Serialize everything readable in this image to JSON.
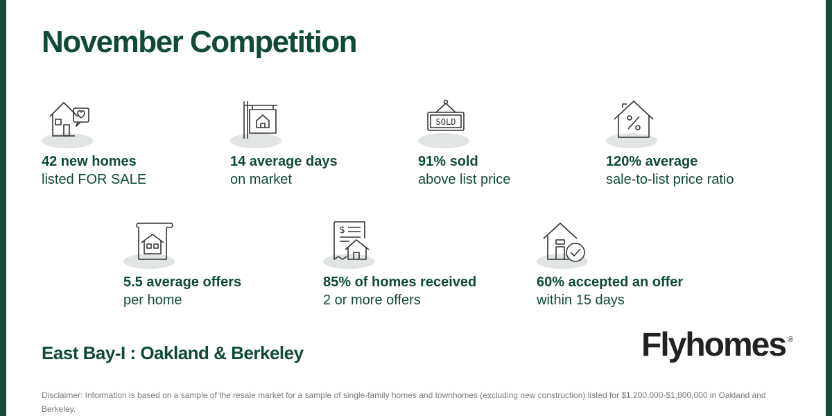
{
  "title": "November Competition",
  "stats": [
    {
      "icon": "house-heart-icon",
      "bold": "42 new homes",
      "sub": "listed FOR SALE"
    },
    {
      "icon": "sign-post-icon",
      "bold": "14 average days",
      "sub": "on market"
    },
    {
      "icon": "sold-sign-icon",
      "bold": "91% sold",
      "sub": "above list price"
    },
    {
      "icon": "house-percent-icon",
      "bold": "120% average",
      "sub": "sale-to-list price ratio"
    },
    {
      "icon": "house-document-icon",
      "bold": "5.5  average offers",
      "sub": "per home"
    },
    {
      "icon": "invoice-house-icon",
      "bold": "85% of homes received",
      "sub": "2 or more offers"
    },
    {
      "icon": "house-check-icon",
      "bold": "60% accepted an offer",
      "sub": "within 15 days"
    }
  ],
  "sold_sign_text": "SOLD",
  "region": "East Bay-I : Oakland & Berkeley",
  "brand": {
    "name": "Flyhomes",
    "mark": "®"
  },
  "disclaimer": "Disclaimer: Information is based on a sample of the resale market for a sample of single-family homes and townhomes (excluding new construction) listed for $1,200,000-$1,800,000 in Oakland and Berkeley."
}
